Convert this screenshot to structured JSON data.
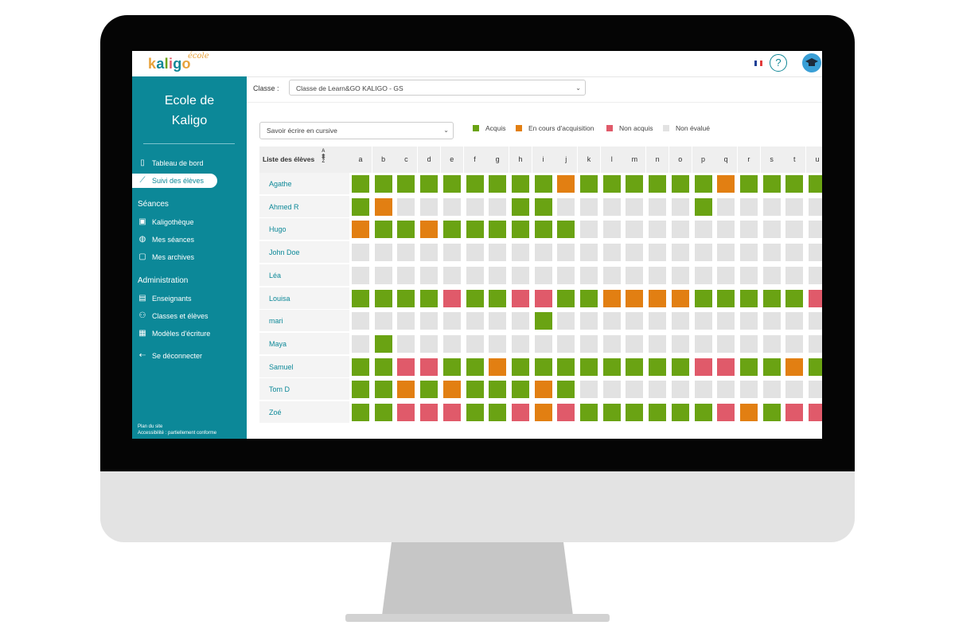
{
  "topbar": {
    "logo_text": "kaligo",
    "logo_sub": "école",
    "help_label": "?",
    "avatar_icon": "graduation-cap-icon",
    "flag_colors": [
      "#1d3f95",
      "#ffffff",
      "#e23b3b"
    ]
  },
  "sidebar": {
    "school_name_line1": "Ecole de",
    "school_name_line2": "Kaligo",
    "items": [
      {
        "label": "Tableau de bord",
        "icon": "dashboard-icon"
      },
      {
        "label": "Suivi des élèves",
        "icon": "chart-line-icon"
      }
    ],
    "section_seances": "Séances",
    "seances_items": [
      {
        "label": "Kaligothèque",
        "icon": "book-icon"
      },
      {
        "label": "Mes séances",
        "icon": "sessions-icon"
      },
      {
        "label": "Mes archives",
        "icon": "archive-icon"
      }
    ],
    "section_admin": "Administration",
    "admin_items": [
      {
        "label": "Enseignants",
        "icon": "id-card-icon"
      },
      {
        "label": "Classes et élèves",
        "icon": "users-icon"
      },
      {
        "label": "Modèles d'écriture",
        "icon": "models-icon"
      }
    ],
    "logout_label": "Se déconnecter",
    "footer_line1": "Plan du site",
    "footer_line2": "Accessibilité : partiellement conforme"
  },
  "main": {
    "classe_label": "Classe :",
    "classe_value": "Classe de Learn&GO KALIGO - GS",
    "skill_value": "Savoir écrire en cursive",
    "legend": [
      {
        "label": "Acquis",
        "color": "#6aa313"
      },
      {
        "label": "En cours d'acquisition",
        "color": "#e27f12"
      },
      {
        "label": "Non acquis",
        "color": "#e05a6a"
      },
      {
        "label": "Non évalué",
        "color": "#e2e2e2"
      }
    ],
    "table": {
      "name_header": "Liste des élèves",
      "sort_top": "A",
      "sort_bottom": "Z",
      "columns": [
        "a",
        "b",
        "c",
        "d",
        "e",
        "f",
        "g",
        "h",
        "i",
        "j",
        "k",
        "l",
        "m",
        "n",
        "o",
        "p",
        "q",
        "r",
        "s",
        "t",
        "u"
      ],
      "students": [
        {
          "name": "Agathe",
          "statuses": "GGGGGGGGGOGGGGGGOGGGG"
        },
        {
          "name": "Ahmed R",
          "statuses": "GONNNNNGGNNNNNNGNNNNN"
        },
        {
          "name": "Hugo",
          "statuses": "OGGOGGGGGGNNNNNNNNNNN"
        },
        {
          "name": "John Doe",
          "statuses": "NNNNNNNNNNNNNNNNNNNNN"
        },
        {
          "name": "Léa",
          "statuses": "NNNNNNNNNNNNNNNNNNNNN"
        },
        {
          "name": "Louisa",
          "statuses": "GGGGRGGRRGGOOOOGGGGGR"
        },
        {
          "name": "mari",
          "statuses": "NNNNNNNNGNNNNNNNNNNNN"
        },
        {
          "name": "Maya",
          "statuses": "NGNNNNNNNNNNNNNNNNNNN"
        },
        {
          "name": "Samuel",
          "statuses": "GGRRGGOGGGGGGGGRRGGOG"
        },
        {
          "name": "Tom D",
          "statuses": "GGOGOGGGOGNNNNNNNNNNN"
        },
        {
          "name": "Zoé",
          "statuses": "GGRRRGGRORGGGGGGROGRR"
        }
      ]
    }
  }
}
